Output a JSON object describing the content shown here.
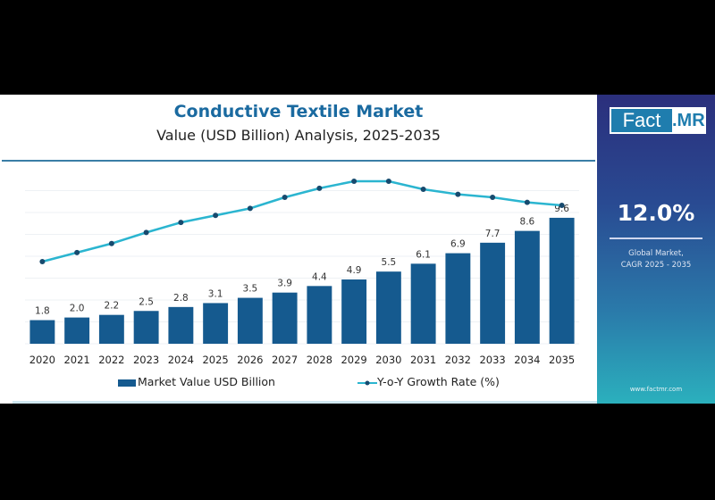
{
  "header": {
    "title": "Conductive Textile Market",
    "subtitle": "Value (USD Billion) Analysis, 2025-2035"
  },
  "side_panel": {
    "logo_left": "Fact",
    "logo_right": ".MR",
    "cagr_value": "12.0%",
    "cagr_label_line1": "Global Market,",
    "cagr_label_line2": "CAGR 2025 - 2035",
    "website": "www.factmr.com"
  },
  "colors": {
    "bar": "#155a8f",
    "line": "#2bb5d0",
    "marker": "#174a6e",
    "title": "#1a6aa0"
  },
  "chart_data": {
    "type": "bar",
    "title": "Conductive Textile Market",
    "subtitle": "Value (USD Billion) Analysis, 2025-2035",
    "xlabel": "",
    "ylabel": "",
    "categories": [
      "2020",
      "2021",
      "2022",
      "2023",
      "2024",
      "2025",
      "2026",
      "2027",
      "2028",
      "2029",
      "2030",
      "2031",
      "2032",
      "2033",
      "2034",
      "2035"
    ],
    "series": [
      {
        "name": "Market Value USD Billion",
        "type": "bar",
        "values": [
          1.8,
          2.0,
          2.2,
          2.5,
          2.8,
          3.1,
          3.5,
          3.9,
          4.4,
          4.9,
          5.5,
          6.1,
          6.9,
          7.7,
          8.6,
          9.6
        ],
        "labels": [
          "1.8",
          "2.0",
          "2.2",
          "2.5",
          "2.8",
          "3.1",
          "3.5",
          "3.9",
          "4.4",
          "4.9",
          "5.5",
          "6.1",
          "6.9",
          "7.7",
          "8.6",
          "9.6"
        ]
      },
      {
        "name": "Y-o-Y Growth Rate (%)",
        "type": "line",
        "note": "no axis shown; relative values estimated",
        "values": [
          9.0,
          9.9,
          10.8,
          11.9,
          12.9,
          13.6,
          14.3,
          15.4,
          16.3,
          17.0,
          17.0,
          16.2,
          15.7,
          15.4,
          14.9,
          14.6
        ]
      }
    ],
    "ylim": [
      0,
      11.5
    ],
    "grid": true,
    "legend": "bottom"
  }
}
